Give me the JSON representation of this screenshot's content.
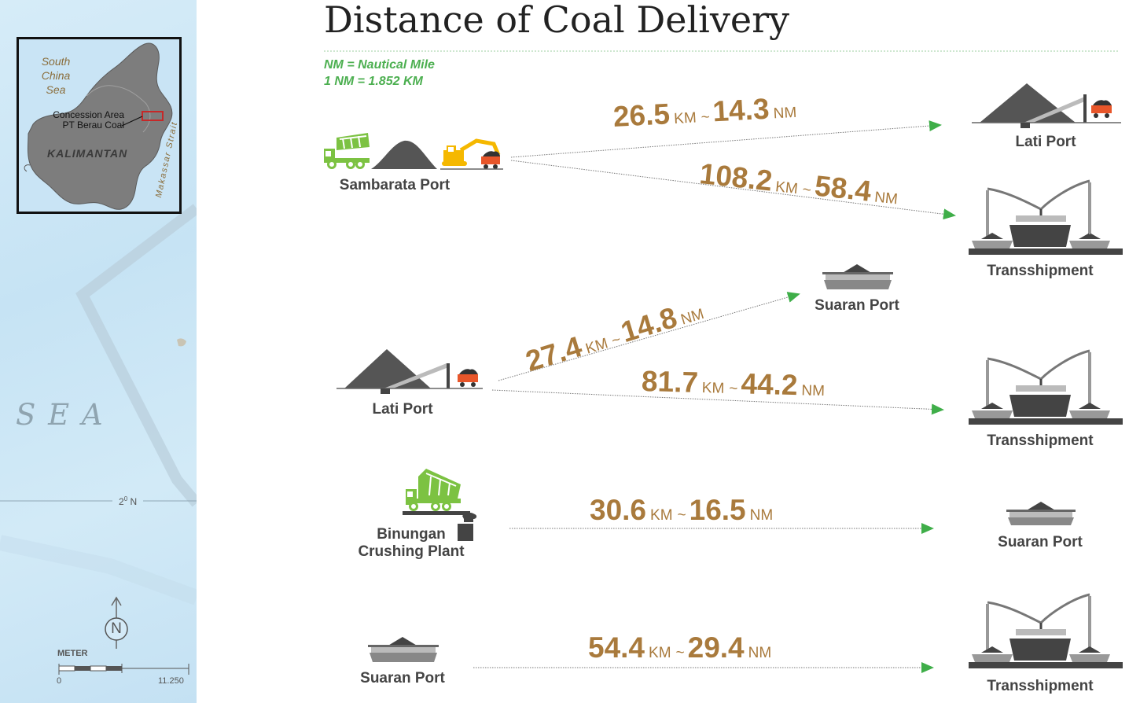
{
  "title": "Distance of Coal Delivery",
  "legend": {
    "line1": "NM = Nautical Mile",
    "line2": "1 NM = 1.852 KM"
  },
  "sidebar": {
    "inset": {
      "sea_label_1": "South",
      "sea_label_2": "China",
      "sea_label_3": "Sea",
      "concession_1": "Concession Area",
      "concession_2": "PT Berau Coal",
      "island": "KALIMANTAN",
      "strait": "Makassar Strait"
    },
    "sea": "S E A",
    "latitude": "2",
    "latitude_deg": "0",
    "latitude_suffix": " N",
    "north": "N",
    "scale_unit": "METER",
    "scale_min": "0",
    "scale_max": "11.250"
  },
  "sources": {
    "sambarata": "Sambarata Port",
    "lati": "Lati Port",
    "binungan_1": "Binungan",
    "binungan_2": "Crushing Plant",
    "suaran": "Suaran Port"
  },
  "destinations": {
    "lati": "Lati Port",
    "trans1": "Transshipment",
    "suaran1": "Suaran Port",
    "trans2": "Transshipment",
    "suaran2": "Suaran Port",
    "trans3": "Transshipment"
  },
  "units": {
    "km": "KM",
    "nm": "NM",
    "tilde": "~"
  },
  "routes": [
    {
      "km": "26.5",
      "nm": "14.3"
    },
    {
      "km": "108.2",
      "nm": "58.4"
    },
    {
      "km": "27.4",
      "nm": "14.8"
    },
    {
      "km": "81.7",
      "nm": "44.2"
    },
    {
      "km": "30.6",
      "nm": "16.5"
    },
    {
      "km": "54.4",
      "nm": "29.4"
    }
  ],
  "colors": {
    "brown": "#a97a3c",
    "green": "#4caf50",
    "dark": "#444444",
    "orange": "#e8562a",
    "yellow": "#f5b800"
  }
}
